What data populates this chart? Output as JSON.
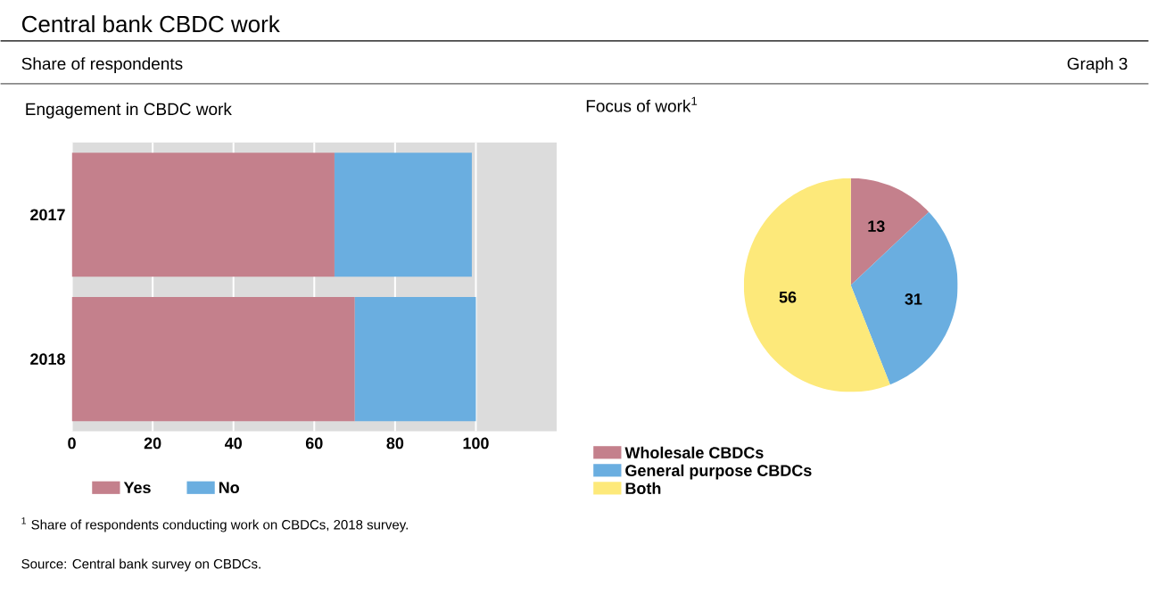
{
  "chart_data": [
    {
      "type": "other",
      "title": "Central bank CBDC work",
      "subtitle": "Share of respondents",
      "annotations": [
        "Graph 3",
        "$^{1}$ Share of respondents conducting work on CBDCs, 2018 survey.",
        "Source: Central bank survey on CBDCs."
      ]
    },
    {
      "type": "bar",
      "title": "Engagement in CBDC work",
      "orientation": "horizontal",
      "stacked": true,
      "categories": [
        "2017",
        "2018"
      ],
      "series": [
        {
          "name": "Yes",
          "color": "#c4808c",
          "values": [
            65,
            70
          ]
        },
        {
          "name": "No",
          "color": "#6aaee0",
          "values": [
            34,
            30
          ]
        }
      ],
      "xlim": [
        0,
        120
      ],
      "xticks": [
        0,
        20,
        40,
        60,
        80,
        100
      ],
      "grid": "x",
      "legend": "bottom left"
    },
    {
      "type": "pie",
      "title": "Focus of work$^{1}$",
      "categories": [
        "Wholesale CBDCs",
        "General purpose CBDCs",
        "Both"
      ],
      "values": [
        13,
        31,
        56
      ],
      "colors": [
        "#c4808c",
        "#6aaee0",
        "#fde97a"
      ],
      "data_labels": true,
      "legend": "bottom left"
    }
  ]
}
